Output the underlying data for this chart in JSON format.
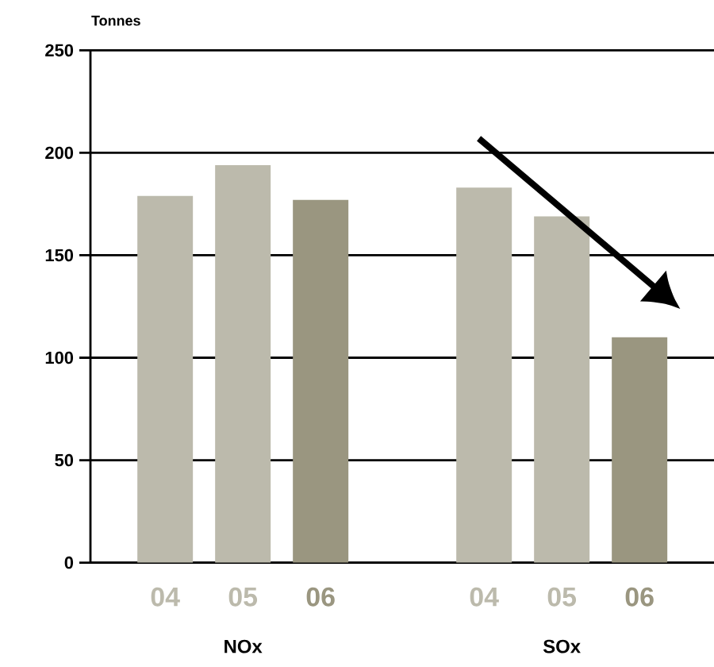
{
  "chart_data": {
    "type": "bar",
    "ylabel": "Tonnes",
    "categories": [
      "NOx",
      "SOx"
    ],
    "series": [
      {
        "name": "04",
        "color": "#bcbaac",
        "values": [
          179,
          183
        ]
      },
      {
        "name": "05",
        "color": "#bcbaac",
        "values": [
          194,
          169
        ]
      },
      {
        "name": "06",
        "color": "#9a9680",
        "values": [
          177,
          110
        ]
      }
    ],
    "ylim": [
      0,
      250
    ],
    "yticks": [
      0,
      50,
      100,
      150,
      200,
      250
    ],
    "grid": "y"
  }
}
